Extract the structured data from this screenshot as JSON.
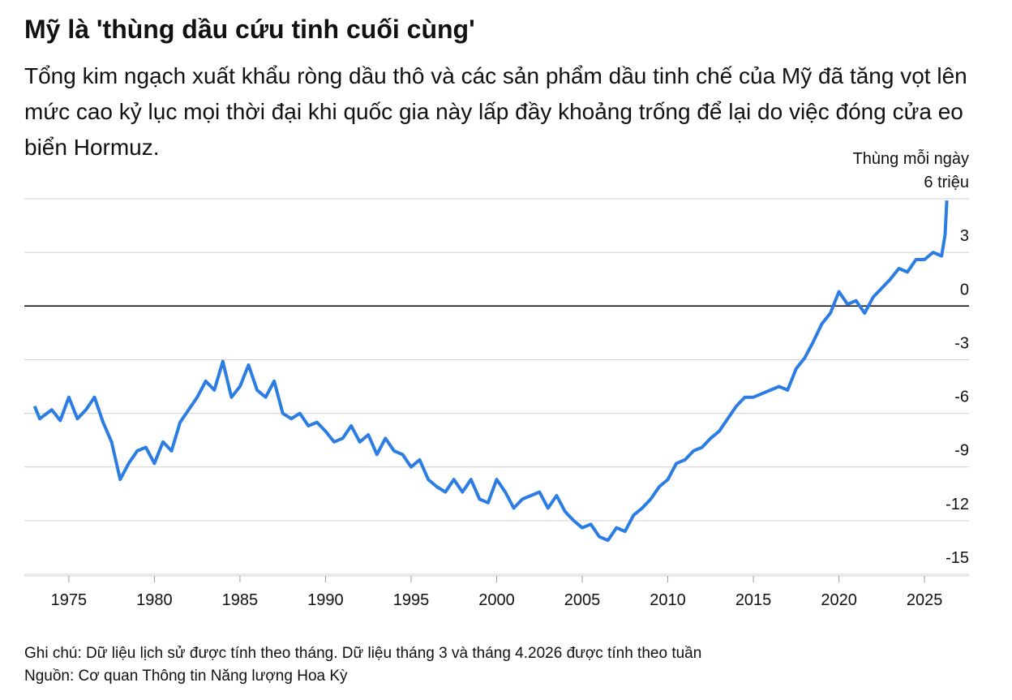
{
  "chart_data": {
    "type": "line",
    "title": "Mỹ là 'thùng dầu cứu tinh cuối cùng'",
    "subtitle": "Tổng kim ngạch xuất khẩu ròng dầu thô và các sản phẩm dầu tinh chế của Mỹ đã tăng vọt lên mức cao kỷ lục mọi thời đại khi quốc gia này lấp đầy khoảng trống để lại do việc đóng cửa eo biển Hormuz.",
    "y_axis_label": "Thùng mỗi ngày",
    "note": "Ghi chú: Dữ liệu lịch sử được tính theo tháng. Dữ liệu tháng 3 và tháng 4.2026 được tính theo tuần",
    "source": "Nguồn: Cơ quan Thông tin Năng lượng Hoa Kỳ",
    "color": "#2b7de3",
    "grid": true,
    "xlim": [
      1972.4,
      2027.6
    ],
    "xticks": [
      1975,
      1980,
      1985,
      1990,
      1995,
      2000,
      2005,
      2010,
      2015,
      2020,
      2025
    ],
    "ylim": [
      -15,
      6
    ],
    "yticks": [
      -15,
      -12,
      -9,
      -6,
      -3,
      0,
      3,
      {
        "value": 6,
        "label": "6 triệu"
      }
    ],
    "x": [
      1973.0,
      1973.3,
      1974.0,
      1974.5,
      1975.0,
      1975.5,
      1976.0,
      1976.5,
      1977.0,
      1977.5,
      1978.0,
      1978.5,
      1979.0,
      1979.5,
      1980.0,
      1980.5,
      1981.0,
      1981.5,
      1982.0,
      1982.5,
      1983.0,
      1983.5,
      1984.0,
      1984.5,
      1985.0,
      1985.5,
      1986.0,
      1986.5,
      1987.0,
      1987.5,
      1988.0,
      1988.5,
      1989.0,
      1989.5,
      1990.0,
      1990.5,
      1991.0,
      1991.5,
      1992.0,
      1992.5,
      1993.0,
      1993.5,
      1994.0,
      1994.5,
      1995.0,
      1995.5,
      1996.0,
      1996.5,
      1997.0,
      1997.5,
      1998.0,
      1998.5,
      1999.0,
      1999.5,
      2000.0,
      2000.5,
      2001.0,
      2001.5,
      2002.0,
      2002.5,
      2003.0,
      2003.5,
      2004.0,
      2004.5,
      2005.0,
      2005.5,
      2006.0,
      2006.5,
      2007.0,
      2007.5,
      2008.0,
      2008.5,
      2009.0,
      2009.5,
      2010.0,
      2010.5,
      2011.0,
      2011.5,
      2012.0,
      2012.5,
      2013.0,
      2013.5,
      2014.0,
      2014.5,
      2015.0,
      2015.5,
      2016.0,
      2016.5,
      2017.0,
      2017.5,
      2018.0,
      2018.5,
      2019.0,
      2019.5,
      2020.0,
      2020.5,
      2021.0,
      2021.5,
      2022.0,
      2022.5,
      2023.0,
      2023.5,
      2024.0,
      2024.5,
      2025.0,
      2025.5,
      2026.0,
      2026.2,
      2026.3
    ],
    "values": [
      -5.6,
      -6.3,
      -5.8,
      -6.4,
      -5.1,
      -6.3,
      -5.8,
      -5.1,
      -6.5,
      -7.6,
      -9.7,
      -8.8,
      -8.1,
      -7.9,
      -8.8,
      -7.6,
      -8.1,
      -6.5,
      -5.8,
      -5.1,
      -4.2,
      -4.7,
      -3.1,
      -5.1,
      -4.5,
      -3.3,
      -4.7,
      -5.1,
      -4.2,
      -6.0,
      -6.3,
      -6.0,
      -6.7,
      -6.5,
      -7.0,
      -7.6,
      -7.4,
      -6.7,
      -7.6,
      -7.2,
      -8.3,
      -7.4,
      -8.1,
      -8.3,
      -9.0,
      -8.6,
      -9.7,
      -10.1,
      -10.4,
      -9.7,
      -10.4,
      -9.7,
      -10.8,
      -11.0,
      -9.7,
      -10.4,
      -11.3,
      -10.8,
      -10.6,
      -10.4,
      -11.3,
      -10.6,
      -11.5,
      -12.0,
      -12.4,
      -12.2,
      -12.9,
      -13.1,
      -12.4,
      -12.6,
      -11.7,
      -11.3,
      -10.8,
      -10.1,
      -9.7,
      -8.8,
      -8.6,
      -8.1,
      -7.9,
      -7.4,
      -7.0,
      -6.3,
      -5.6,
      -5.1,
      -5.1,
      -4.9,
      -4.7,
      -4.5,
      -4.7,
      -3.5,
      -2.9,
      -2.0,
      -1.0,
      -0.4,
      0.8,
      0.1,
      0.3,
      -0.4,
      0.5,
      1.0,
      1.5,
      2.1,
      1.9,
      2.6,
      2.6,
      3.0,
      2.8,
      4.0,
      5.9
    ]
  }
}
